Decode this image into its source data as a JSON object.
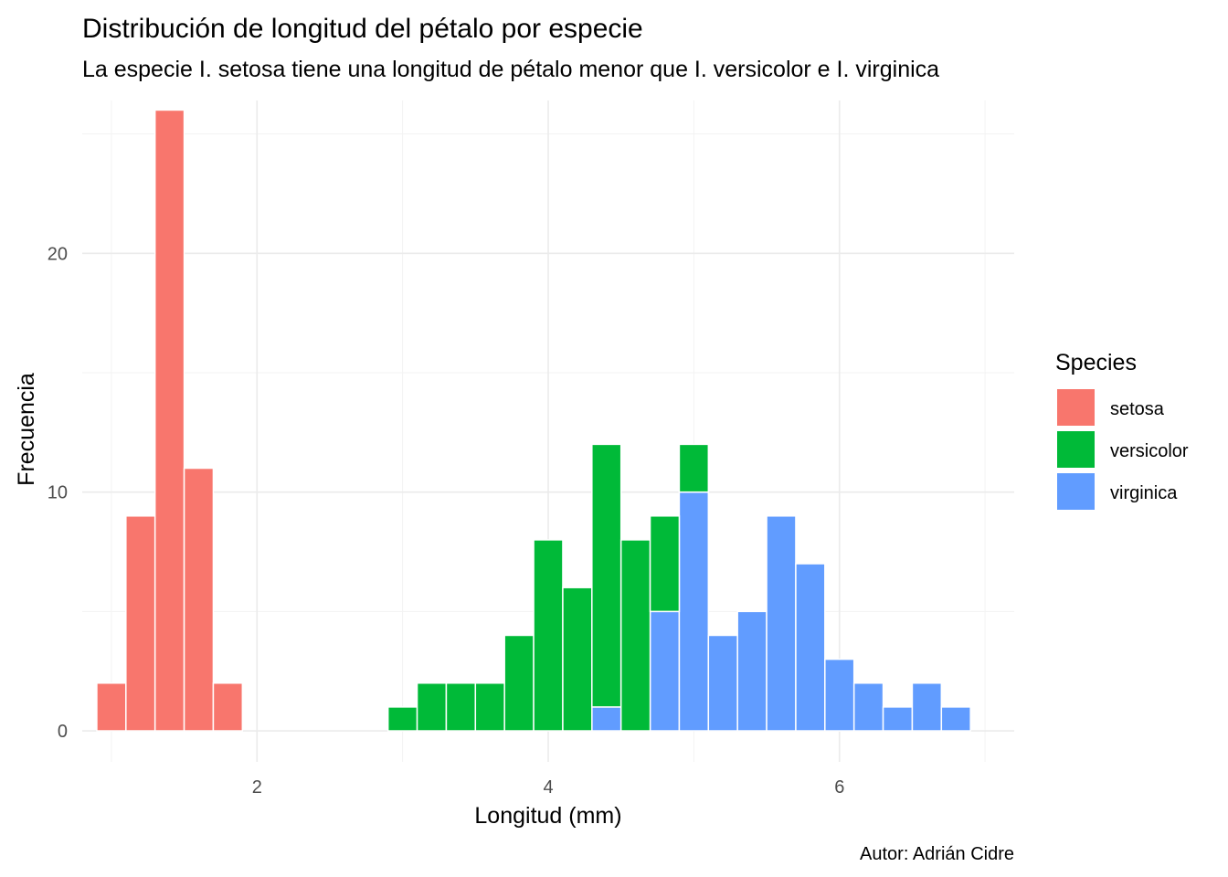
{
  "chart_data": {
    "type": "bar",
    "subtype": "stacked-histogram",
    "title": "Distribución de longitud del pétalo por especie",
    "subtitle": "La especie I. setosa tiene una longitud de pétalo menor que I. versicolor e I. virginica",
    "xlabel": "Longitud (mm)",
    "ylabel": "Frecuencia",
    "caption": "Autor: Adrián Cidre",
    "xlim": [
      0.8,
      7.2
    ],
    "ylim": [
      -1.3,
      26.4
    ],
    "x_ticks": [
      2,
      4,
      6
    ],
    "y_ticks": [
      0,
      10,
      20
    ],
    "x_minor_ticks": [
      1,
      3,
      5,
      7
    ],
    "y_minor_ticks": [
      5,
      15,
      25
    ],
    "bin_width": 0.2,
    "grid": true,
    "legend_title": "Species",
    "legend_position": "right",
    "series": [
      {
        "name": "setosa",
        "color": "#F8766D",
        "x": [
          1.0,
          1.2,
          1.4,
          1.6,
          1.8
        ],
        "values": [
          2,
          9,
          26,
          11,
          2
        ]
      },
      {
        "name": "versicolor",
        "color": "#00BA38",
        "x": [
          3.0,
          3.2,
          3.4,
          3.6,
          3.8,
          4.0,
          4.2,
          4.4,
          4.6,
          4.8,
          5.0
        ],
        "values": [
          1,
          2,
          2,
          2,
          4,
          8,
          6,
          11,
          8,
          4,
          2
        ]
      },
      {
        "name": "virginica",
        "color": "#619CFF",
        "x": [
          4.4,
          4.8,
          5.0,
          5.2,
          5.4,
          5.6,
          5.8,
          6.0,
          6.2,
          6.4,
          6.6,
          6.8
        ],
        "values": [
          1,
          5,
          10,
          4,
          5,
          9,
          7,
          3,
          2,
          1,
          2,
          1
        ]
      }
    ]
  }
}
